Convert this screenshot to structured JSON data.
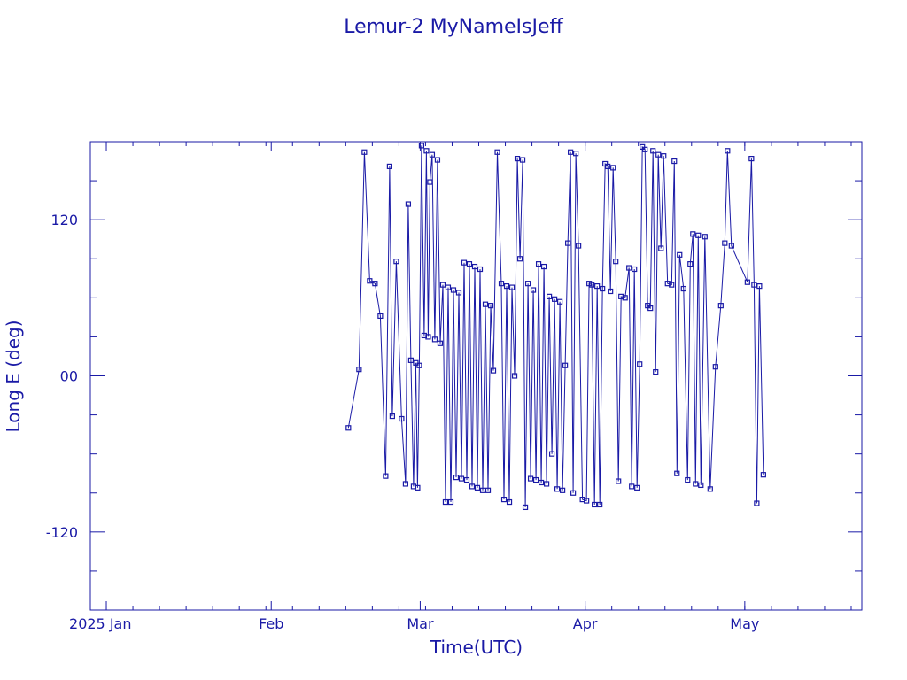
{
  "chart_data": {
    "type": "line",
    "title": "Lemur-2 MyNameIsJeff",
    "xlabel": "Time(UTC)",
    "ylabel": "Long E (deg)",
    "x_tick_labels": [
      {
        "label": "2025 Jan",
        "date": "2025-01-01"
      },
      {
        "label": "Feb",
        "date": "2025-02-01"
      },
      {
        "label": "Mar",
        "date": "2025-03-01"
      },
      {
        "label": "Apr",
        "date": "2025-04-01"
      },
      {
        "label": "May",
        "date": "2025-05-01"
      }
    ],
    "y_ticks": [
      -120,
      0,
      120
    ],
    "xlim": [
      "2024-12-29",
      "2025-05-23"
    ],
    "ylim": [
      -180,
      180
    ],
    "grid": false,
    "color": "#1a1aa6",
    "series": [
      {
        "points": [
          [
            "2025-02-15",
            -40
          ],
          [
            "2025-02-17",
            5
          ],
          [
            "2025-02-18",
            172
          ],
          [
            "2025-02-19",
            73
          ],
          [
            "2025-02-20",
            71
          ],
          [
            "2025-02-21",
            46
          ],
          [
            "2025-02-22",
            -77
          ],
          [
            "2025-02-23",
            161
          ],
          [
            "2025-02-23",
            -31
          ],
          [
            "2025-02-24",
            88
          ],
          [
            "2025-02-25",
            -33
          ],
          [
            "2025-02-26",
            -83
          ],
          [
            "2025-02-26",
            132
          ],
          [
            "2025-02-27",
            12
          ],
          [
            "2025-02-27",
            -85
          ],
          [
            "2025-02-28",
            10
          ],
          [
            "2025-02-28",
            -86
          ],
          [
            "2025-02-28",
            8
          ],
          [
            "2025-03-01",
            177
          ],
          [
            "2025-03-01",
            31
          ],
          [
            "2025-03-02",
            173
          ],
          [
            "2025-03-02",
            30
          ],
          [
            "2025-03-02",
            149
          ],
          [
            "2025-03-03",
            170
          ],
          [
            "2025-03-03",
            28
          ],
          [
            "2025-03-04",
            166
          ],
          [
            "2025-03-04",
            25
          ],
          [
            "2025-03-05",
            70
          ],
          [
            "2025-03-05",
            -97
          ],
          [
            "2025-03-06",
            68
          ],
          [
            "2025-03-06",
            -97
          ],
          [
            "2025-03-07",
            66
          ],
          [
            "2025-03-07",
            -78
          ],
          [
            "2025-03-08",
            64
          ],
          [
            "2025-03-08",
            -79
          ],
          [
            "2025-03-09",
            87
          ],
          [
            "2025-03-09",
            -80
          ],
          [
            "2025-03-10",
            86
          ],
          [
            "2025-03-10",
            -85
          ],
          [
            "2025-03-11",
            84
          ],
          [
            "2025-03-11",
            -86
          ],
          [
            "2025-03-12",
            82
          ],
          [
            "2025-03-12",
            -88
          ],
          [
            "2025-03-13",
            55
          ],
          [
            "2025-03-13",
            -88
          ],
          [
            "2025-03-14",
            54
          ],
          [
            "2025-03-14",
            4
          ],
          [
            "2025-03-15",
            172
          ],
          [
            "2025-03-16",
            71
          ],
          [
            "2025-03-16",
            -95
          ],
          [
            "2025-03-17",
            69
          ],
          [
            "2025-03-17",
            -97
          ],
          [
            "2025-03-18",
            68
          ],
          [
            "2025-03-18",
            0
          ],
          [
            "2025-03-19",
            167
          ],
          [
            "2025-03-19",
            90
          ],
          [
            "2025-03-20",
            166
          ],
          [
            "2025-03-20",
            -101
          ],
          [
            "2025-03-21",
            71
          ],
          [
            "2025-03-21",
            -79
          ],
          [
            "2025-03-22",
            66
          ],
          [
            "2025-03-22",
            -80
          ],
          [
            "2025-03-23",
            86
          ],
          [
            "2025-03-23",
            -82
          ],
          [
            "2025-03-24",
            84
          ],
          [
            "2025-03-24",
            -83
          ],
          [
            "2025-03-25",
            61
          ],
          [
            "2025-03-25",
            -60
          ],
          [
            "2025-03-26",
            59
          ],
          [
            "2025-03-26",
            -87
          ],
          [
            "2025-03-27",
            57
          ],
          [
            "2025-03-27",
            -88
          ],
          [
            "2025-03-28",
            8
          ],
          [
            "2025-03-28",
            102
          ],
          [
            "2025-03-29",
            172
          ],
          [
            "2025-03-29",
            -90
          ],
          [
            "2025-03-30",
            171
          ],
          [
            "2025-03-30",
            100
          ],
          [
            "2025-03-31",
            -95
          ],
          [
            "2025-04-01",
            -96
          ],
          [
            "2025-04-01",
            71
          ],
          [
            "2025-04-02",
            70
          ],
          [
            "2025-04-02",
            -99
          ],
          [
            "2025-04-03",
            69
          ],
          [
            "2025-04-03",
            -99
          ],
          [
            "2025-04-04",
            67
          ],
          [
            "2025-04-04",
            163
          ],
          [
            "2025-04-05",
            161
          ],
          [
            "2025-04-05",
            65
          ],
          [
            "2025-04-06",
            160
          ],
          [
            "2025-04-06",
            88
          ],
          [
            "2025-04-07",
            -81
          ],
          [
            "2025-04-07",
            61
          ],
          [
            "2025-04-08",
            60
          ],
          [
            "2025-04-09",
            83
          ],
          [
            "2025-04-09",
            -85
          ],
          [
            "2025-04-10",
            82
          ],
          [
            "2025-04-10",
            -86
          ],
          [
            "2025-04-11",
            9
          ],
          [
            "2025-04-11",
            176
          ],
          [
            "2025-04-12",
            174
          ],
          [
            "2025-04-12",
            54
          ],
          [
            "2025-04-13",
            52
          ],
          [
            "2025-04-13",
            173
          ],
          [
            "2025-04-14",
            3
          ],
          [
            "2025-04-14",
            170
          ],
          [
            "2025-04-15",
            98
          ],
          [
            "2025-04-15",
            169
          ],
          [
            "2025-04-16",
            71
          ],
          [
            "2025-04-17",
            70
          ],
          [
            "2025-04-17",
            165
          ],
          [
            "2025-04-18",
            -75
          ],
          [
            "2025-04-18",
            93
          ],
          [
            "2025-04-19",
            67
          ],
          [
            "2025-04-20",
            -80
          ],
          [
            "2025-04-20",
            86
          ],
          [
            "2025-04-21",
            109
          ],
          [
            "2025-04-21",
            -83
          ],
          [
            "2025-04-22",
            108
          ],
          [
            "2025-04-22",
            -84
          ],
          [
            "2025-04-23",
            107
          ],
          [
            "2025-04-24",
            -87
          ],
          [
            "2025-04-25",
            7
          ],
          [
            "2025-04-26",
            54
          ],
          [
            "2025-04-27",
            102
          ],
          [
            "2025-04-27",
            173
          ],
          [
            "2025-04-28",
            100
          ],
          [
            "2025-05-01",
            72
          ],
          [
            "2025-05-02",
            167
          ],
          [
            "2025-05-02",
            70
          ],
          [
            "2025-05-03",
            -98
          ],
          [
            "2025-05-03",
            69
          ],
          [
            "2025-05-04",
            -76
          ]
        ]
      }
    ]
  }
}
